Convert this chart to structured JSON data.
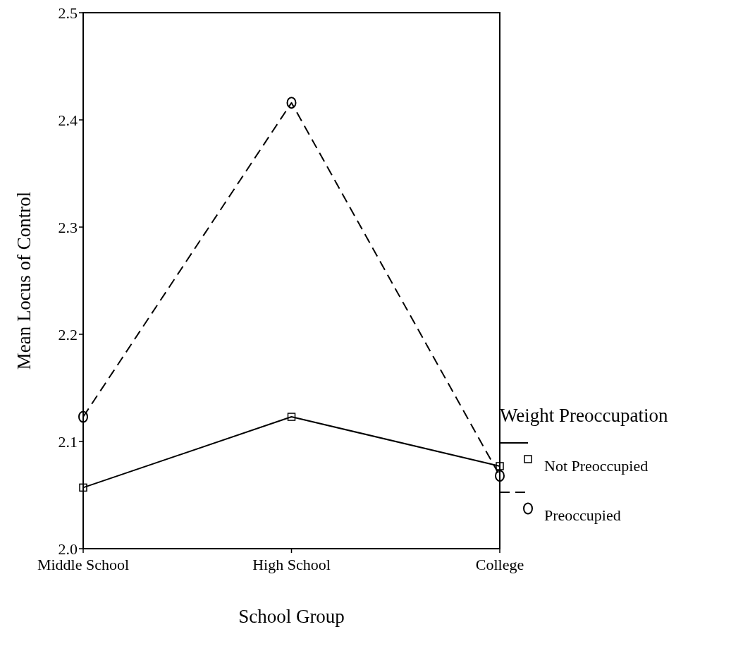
{
  "chart_data": {
    "type": "line",
    "xlabel": "School Group",
    "ylabel": "Mean Locus of Control",
    "legend_title": "Weight Preoccupation",
    "legend": "right",
    "categories": [
      "Middle School",
      "High School",
      "College"
    ],
    "ylim": [
      2.0,
      2.5
    ],
    "yticks": [
      {
        "value": 2.0,
        "label": "2.0"
      },
      2.1,
      2.2,
      2.3,
      2.4,
      2.5
    ],
    "grid": false,
    "series": [
      {
        "name": "Not Preoccupied",
        "color": "#000000",
        "marker": "square",
        "line_style": "solid",
        "values": [
          2.057,
          2.123,
          2.077
        ]
      },
      {
        "name": "Preoccupied",
        "color": "#000000",
        "marker": "circle",
        "line_style": "dashed",
        "values": [
          2.123,
          2.416,
          2.068
        ]
      }
    ]
  }
}
